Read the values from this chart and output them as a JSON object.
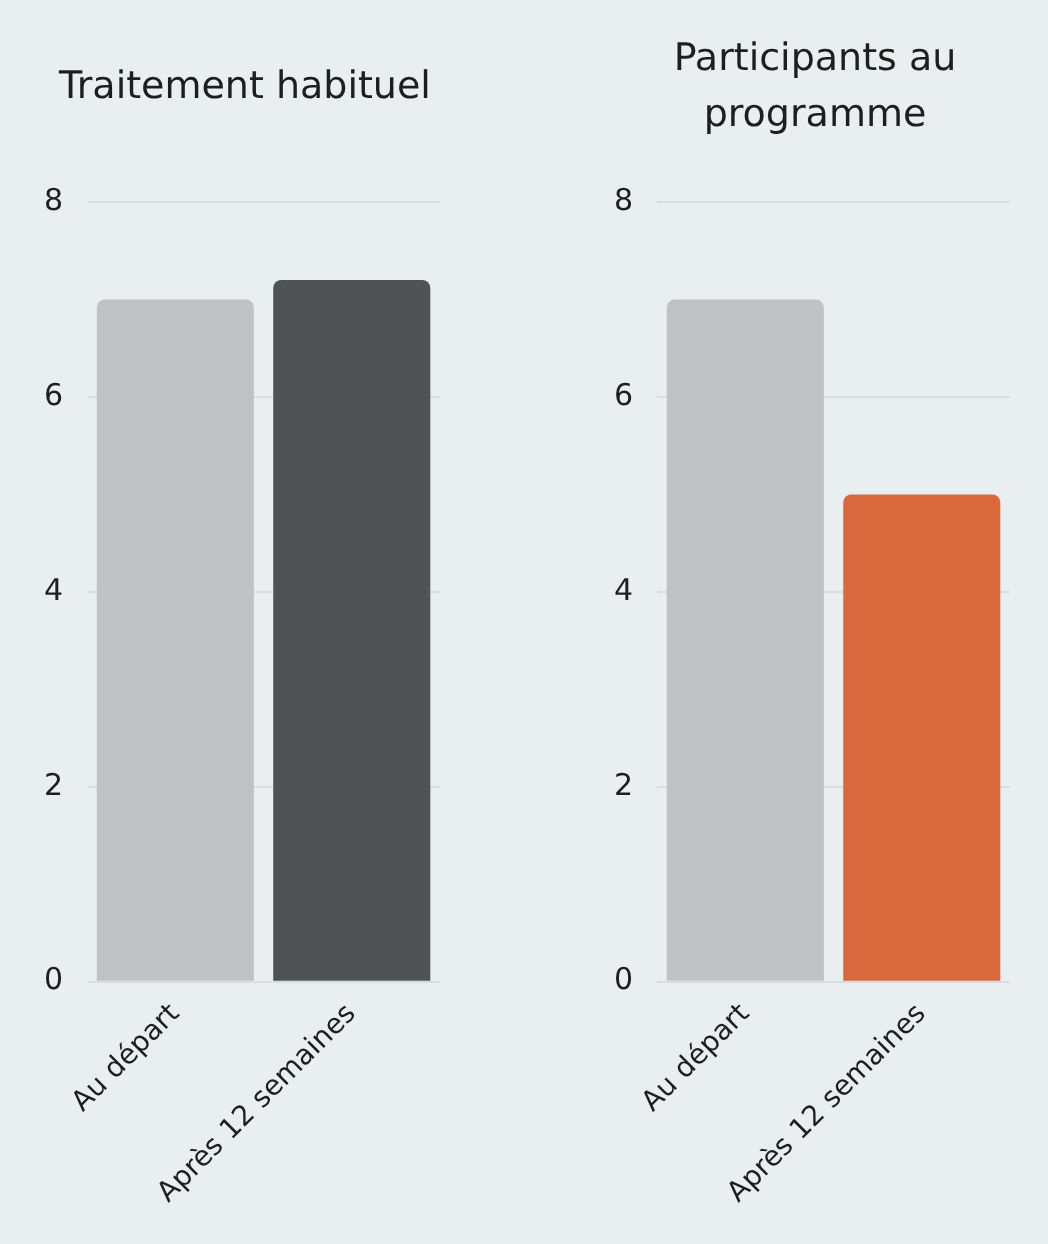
{
  "chart_data": [
    {
      "type": "bar",
      "title": "Traitement habituel",
      "categories": [
        "Au départ",
        "Après 12 semaines"
      ],
      "values": [
        7,
        7.2
      ],
      "colors": [
        "#c0c1c5",
        "#4f5354"
      ],
      "ylim": [
        0,
        8
      ],
      "yticks": [
        0,
        2,
        4,
        6,
        8
      ],
      "grid": "y"
    },
    {
      "type": "bar",
      "title": "Participants au programme",
      "categories": [
        "Au départ",
        "Après 12 semaines"
      ],
      "values": [
        7,
        5
      ],
      "colors": [
        "#c0c1c5",
        "#d9683d"
      ],
      "ylim": [
        0,
        8
      ],
      "yticks": [
        0,
        2,
        4,
        6,
        8
      ],
      "grid": "y"
    }
  ]
}
